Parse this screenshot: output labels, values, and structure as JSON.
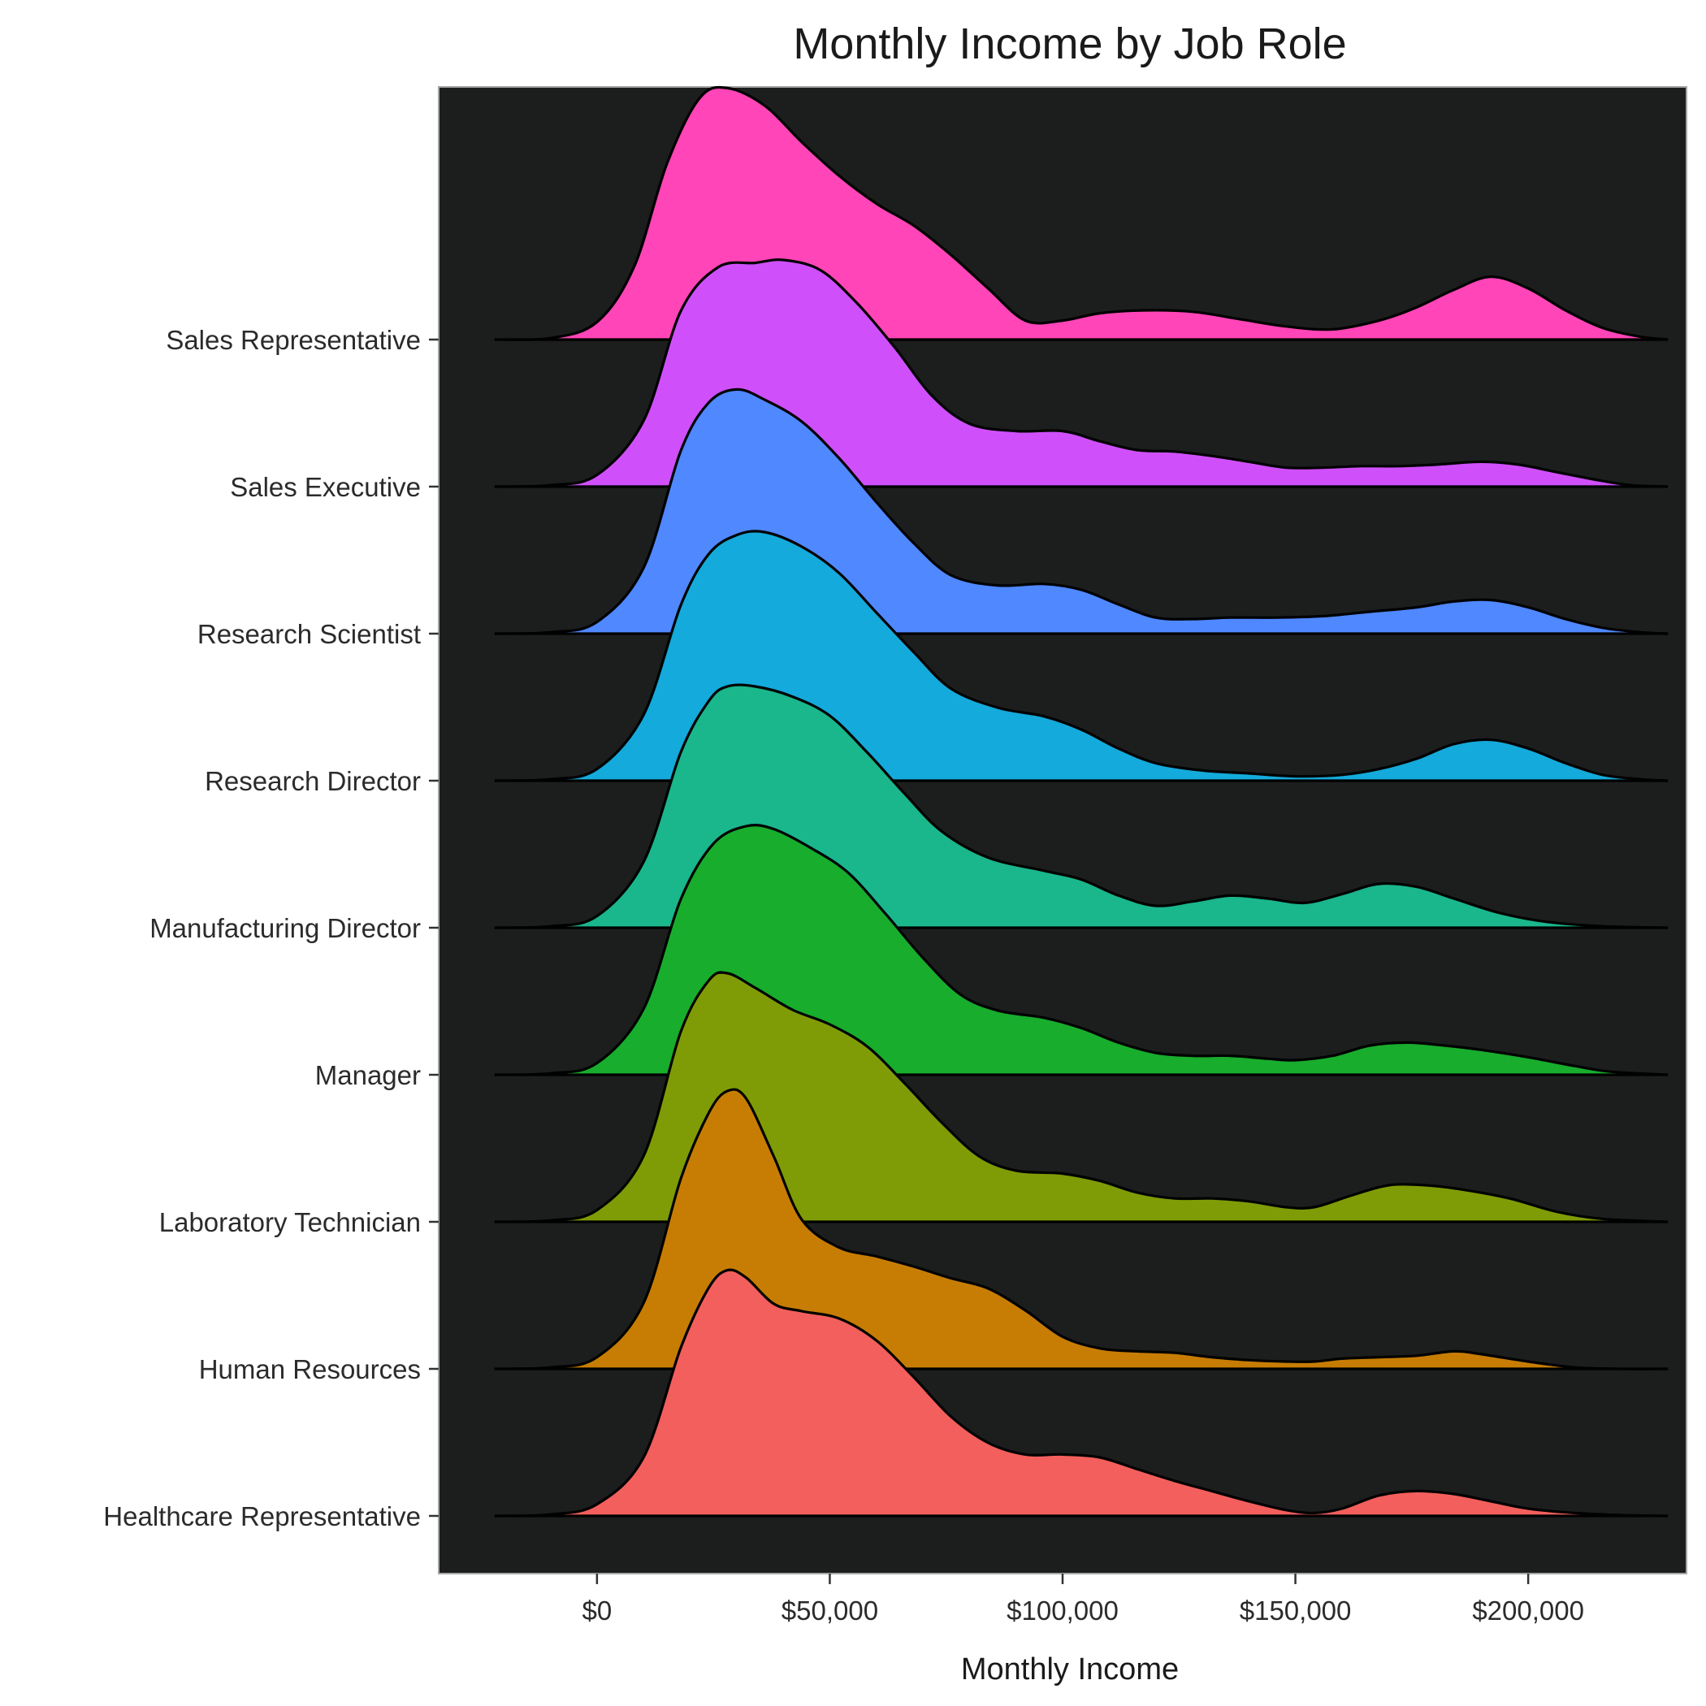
{
  "chart_data": {
    "type": "ridgeline",
    "title": "Monthly Income by Job Role",
    "xlabel": "Monthly Income",
    "ylabel": "",
    "xlim": [
      -34000,
      234000
    ],
    "x_ticks": [
      0,
      50000,
      100000,
      150000,
      200000
    ],
    "x_tick_labels": [
      "$0",
      "$50,000",
      "$100,000",
      "$150,000",
      "$200,000"
    ],
    "panel_background": "#1c1e1e",
    "density_range": [
      -22000,
      230000
    ],
    "series": [
      {
        "name": "Healthcare Representative",
        "color": "#f25f5c",
        "points": [
          [
            -22000,
            0
          ],
          [
            -10000,
            0.01
          ],
          [
            0,
            0.08
          ],
          [
            10000,
            0.4
          ],
          [
            18000,
            1.15
          ],
          [
            24000,
            1.56
          ],
          [
            28000,
            1.68
          ],
          [
            32000,
            1.63
          ],
          [
            38000,
            1.45
          ],
          [
            44000,
            1.4
          ],
          [
            52000,
            1.35
          ],
          [
            60000,
            1.2
          ],
          [
            68000,
            0.95
          ],
          [
            76000,
            0.68
          ],
          [
            84000,
            0.5
          ],
          [
            92000,
            0.42
          ],
          [
            100000,
            0.42
          ],
          [
            108000,
            0.4
          ],
          [
            116000,
            0.32
          ],
          [
            124000,
            0.24
          ],
          [
            132000,
            0.17
          ],
          [
            140000,
            0.1
          ],
          [
            148000,
            0.04
          ],
          [
            154000,
            0.02
          ],
          [
            160000,
            0.05
          ],
          [
            168000,
            0.14
          ],
          [
            176000,
            0.17
          ],
          [
            184000,
            0.15
          ],
          [
            192000,
            0.1
          ],
          [
            200000,
            0.05
          ],
          [
            210000,
            0.02
          ],
          [
            220000,
            0.005
          ],
          [
            230000,
            0
          ]
        ]
      },
      {
        "name": "Human Resources",
        "color": "#c77d04",
        "points": [
          [
            -22000,
            0
          ],
          [
            -10000,
            0.01
          ],
          [
            0,
            0.08
          ],
          [
            10000,
            0.45
          ],
          [
            18000,
            1.3
          ],
          [
            24000,
            1.75
          ],
          [
            28000,
            1.9
          ],
          [
            32000,
            1.85
          ],
          [
            38000,
            1.45
          ],
          [
            44000,
            1.02
          ],
          [
            52000,
            0.83
          ],
          [
            60000,
            0.77
          ],
          [
            68000,
            0.7
          ],
          [
            76000,
            0.62
          ],
          [
            84000,
            0.55
          ],
          [
            92000,
            0.4
          ],
          [
            100000,
            0.22
          ],
          [
            108000,
            0.14
          ],
          [
            116000,
            0.12
          ],
          [
            124000,
            0.11
          ],
          [
            132000,
            0.08
          ],
          [
            140000,
            0.06
          ],
          [
            148000,
            0.05
          ],
          [
            154000,
            0.05
          ],
          [
            160000,
            0.07
          ],
          [
            168000,
            0.08
          ],
          [
            176000,
            0.09
          ],
          [
            184000,
            0.12
          ],
          [
            190000,
            0.1
          ],
          [
            200000,
            0.05
          ],
          [
            210000,
            0.01
          ],
          [
            220000,
            0
          ],
          [
            230000,
            0
          ]
        ]
      },
      {
        "name": "Laboratory Technician",
        "color": "#7f9c06",
        "points": [
          [
            -22000,
            0
          ],
          [
            -10000,
            0.01
          ],
          [
            0,
            0.08
          ],
          [
            10000,
            0.45
          ],
          [
            18000,
            1.3
          ],
          [
            24000,
            1.65
          ],
          [
            28000,
            1.7
          ],
          [
            34000,
            1.6
          ],
          [
            42000,
            1.45
          ],
          [
            50000,
            1.35
          ],
          [
            58000,
            1.2
          ],
          [
            66000,
            0.95
          ],
          [
            74000,
            0.68
          ],
          [
            82000,
            0.45
          ],
          [
            90000,
            0.35
          ],
          [
            100000,
            0.33
          ],
          [
            108000,
            0.28
          ],
          [
            116000,
            0.2
          ],
          [
            124000,
            0.16
          ],
          [
            132000,
            0.16
          ],
          [
            140000,
            0.14
          ],
          [
            148000,
            0.1
          ],
          [
            154000,
            0.1
          ],
          [
            162000,
            0.18
          ],
          [
            170000,
            0.25
          ],
          [
            178000,
            0.25
          ],
          [
            186000,
            0.22
          ],
          [
            196000,
            0.16
          ],
          [
            206000,
            0.07
          ],
          [
            216000,
            0.02
          ],
          [
            230000,
            0
          ]
        ]
      },
      {
        "name": "Manager",
        "color": "#18ad2d",
        "points": [
          [
            -22000,
            0
          ],
          [
            -10000,
            0.01
          ],
          [
            0,
            0.08
          ],
          [
            10000,
            0.45
          ],
          [
            18000,
            1.2
          ],
          [
            25000,
            1.58
          ],
          [
            32000,
            1.7
          ],
          [
            38000,
            1.68
          ],
          [
            46000,
            1.55
          ],
          [
            54000,
            1.38
          ],
          [
            62000,
            1.1
          ],
          [
            70000,
            0.8
          ],
          [
            78000,
            0.55
          ],
          [
            86000,
            0.44
          ],
          [
            96000,
            0.39
          ],
          [
            104000,
            0.32
          ],
          [
            112000,
            0.22
          ],
          [
            120000,
            0.15
          ],
          [
            128000,
            0.13
          ],
          [
            136000,
            0.13
          ],
          [
            144000,
            0.11
          ],
          [
            150000,
            0.1
          ],
          [
            158000,
            0.13
          ],
          [
            166000,
            0.2
          ],
          [
            174000,
            0.22
          ],
          [
            182000,
            0.2
          ],
          [
            190000,
            0.17
          ],
          [
            200000,
            0.12
          ],
          [
            210000,
            0.06
          ],
          [
            218000,
            0.02
          ],
          [
            230000,
            0
          ]
        ]
      },
      {
        "name": "Manufacturing Director",
        "color": "#1ab68c",
        "points": [
          [
            -22000,
            0
          ],
          [
            -10000,
            0.01
          ],
          [
            0,
            0.08
          ],
          [
            10000,
            0.45
          ],
          [
            18000,
            1.2
          ],
          [
            24000,
            1.55
          ],
          [
            28000,
            1.65
          ],
          [
            34000,
            1.65
          ],
          [
            42000,
            1.58
          ],
          [
            50000,
            1.45
          ],
          [
            58000,
            1.2
          ],
          [
            66000,
            0.92
          ],
          [
            74000,
            0.66
          ],
          [
            84000,
            0.48
          ],
          [
            96000,
            0.39
          ],
          [
            104000,
            0.33
          ],
          [
            112000,
            0.22
          ],
          [
            120000,
            0.15
          ],
          [
            128000,
            0.18
          ],
          [
            136000,
            0.22
          ],
          [
            144000,
            0.2
          ],
          [
            152000,
            0.17
          ],
          [
            160000,
            0.23
          ],
          [
            168000,
            0.3
          ],
          [
            176000,
            0.28
          ],
          [
            184000,
            0.2
          ],
          [
            194000,
            0.1
          ],
          [
            204000,
            0.04
          ],
          [
            216000,
            0.01
          ],
          [
            230000,
            0
          ]
        ]
      },
      {
        "name": "Research Director",
        "color": "#14aadb",
        "points": [
          [
            -22000,
            0
          ],
          [
            -10000,
            0.01
          ],
          [
            0,
            0.08
          ],
          [
            10000,
            0.45
          ],
          [
            18000,
            1.2
          ],
          [
            24000,
            1.55
          ],
          [
            30000,
            1.68
          ],
          [
            36000,
            1.7
          ],
          [
            44000,
            1.6
          ],
          [
            52000,
            1.42
          ],
          [
            60000,
            1.15
          ],
          [
            68000,
            0.88
          ],
          [
            76000,
            0.63
          ],
          [
            86000,
            0.5
          ],
          [
            96000,
            0.44
          ],
          [
            104000,
            0.35
          ],
          [
            112000,
            0.22
          ],
          [
            120000,
            0.12
          ],
          [
            130000,
            0.07
          ],
          [
            140000,
            0.05
          ],
          [
            150000,
            0.03
          ],
          [
            160000,
            0.04
          ],
          [
            168000,
            0.08
          ],
          [
            176000,
            0.15
          ],
          [
            184000,
            0.25
          ],
          [
            192000,
            0.28
          ],
          [
            200000,
            0.22
          ],
          [
            208000,
            0.12
          ],
          [
            216000,
            0.04
          ],
          [
            224000,
            0.01
          ],
          [
            230000,
            0
          ]
        ]
      },
      {
        "name": "Research Scientist",
        "color": "#4f88ff",
        "points": [
          [
            -22000,
            0
          ],
          [
            -10000,
            0.01
          ],
          [
            0,
            0.08
          ],
          [
            10000,
            0.45
          ],
          [
            18000,
            1.25
          ],
          [
            24000,
            1.58
          ],
          [
            30000,
            1.67
          ],
          [
            36000,
            1.6
          ],
          [
            44000,
            1.45
          ],
          [
            52000,
            1.2
          ],
          [
            60000,
            0.9
          ],
          [
            68000,
            0.62
          ],
          [
            76000,
            0.4
          ],
          [
            86000,
            0.33
          ],
          [
            96000,
            0.34
          ],
          [
            104000,
            0.3
          ],
          [
            112000,
            0.2
          ],
          [
            120000,
            0.11
          ],
          [
            128000,
            0.1
          ],
          [
            136000,
            0.11
          ],
          [
            146000,
            0.11
          ],
          [
            156000,
            0.12
          ],
          [
            166000,
            0.15
          ],
          [
            176000,
            0.18
          ],
          [
            184000,
            0.22
          ],
          [
            192000,
            0.23
          ],
          [
            200000,
            0.18
          ],
          [
            208000,
            0.1
          ],
          [
            216000,
            0.04
          ],
          [
            224000,
            0.01
          ],
          [
            230000,
            0
          ]
        ]
      },
      {
        "name": "Sales Executive",
        "color": "#cf50fb",
        "points": [
          [
            -22000,
            0
          ],
          [
            -10000,
            0.01
          ],
          [
            0,
            0.08
          ],
          [
            10000,
            0.45
          ],
          [
            18000,
            1.2
          ],
          [
            26000,
            1.5
          ],
          [
            34000,
            1.53
          ],
          [
            40000,
            1.55
          ],
          [
            48000,
            1.48
          ],
          [
            56000,
            1.25
          ],
          [
            64000,
            0.95
          ],
          [
            72000,
            0.62
          ],
          [
            80000,
            0.43
          ],
          [
            90000,
            0.38
          ],
          [
            100000,
            0.38
          ],
          [
            108000,
            0.31
          ],
          [
            116000,
            0.25
          ],
          [
            124000,
            0.24
          ],
          [
            132000,
            0.21
          ],
          [
            140000,
            0.17
          ],
          [
            148000,
            0.13
          ],
          [
            156000,
            0.13
          ],
          [
            164000,
            0.14
          ],
          [
            172000,
            0.14
          ],
          [
            180000,
            0.15
          ],
          [
            190000,
            0.17
          ],
          [
            198000,
            0.15
          ],
          [
            206000,
            0.1
          ],
          [
            214000,
            0.05
          ],
          [
            222000,
            0.01
          ],
          [
            230000,
            0
          ]
        ]
      },
      {
        "name": "Sales Representative",
        "color": "#ff45b7",
        "points": [
          [
            -22000,
            0
          ],
          [
            -10000,
            0.01
          ],
          [
            0,
            0.12
          ],
          [
            8000,
            0.5
          ],
          [
            15000,
            1.2
          ],
          [
            22000,
            1.65
          ],
          [
            28000,
            1.72
          ],
          [
            36000,
            1.6
          ],
          [
            44000,
            1.35
          ],
          [
            52000,
            1.12
          ],
          [
            60000,
            0.93
          ],
          [
            68000,
            0.78
          ],
          [
            76000,
            0.58
          ],
          [
            84000,
            0.35
          ],
          [
            92000,
            0.13
          ],
          [
            100000,
            0.13
          ],
          [
            108000,
            0.18
          ],
          [
            118000,
            0.2
          ],
          [
            128000,
            0.19
          ],
          [
            138000,
            0.14
          ],
          [
            148000,
            0.09
          ],
          [
            158000,
            0.07
          ],
          [
            168000,
            0.13
          ],
          [
            176000,
            0.22
          ],
          [
            184000,
            0.34
          ],
          [
            192000,
            0.43
          ],
          [
            200000,
            0.35
          ],
          [
            208000,
            0.2
          ],
          [
            216000,
            0.08
          ],
          [
            224000,
            0.02
          ],
          [
            230000,
            0
          ]
        ]
      }
    ]
  }
}
